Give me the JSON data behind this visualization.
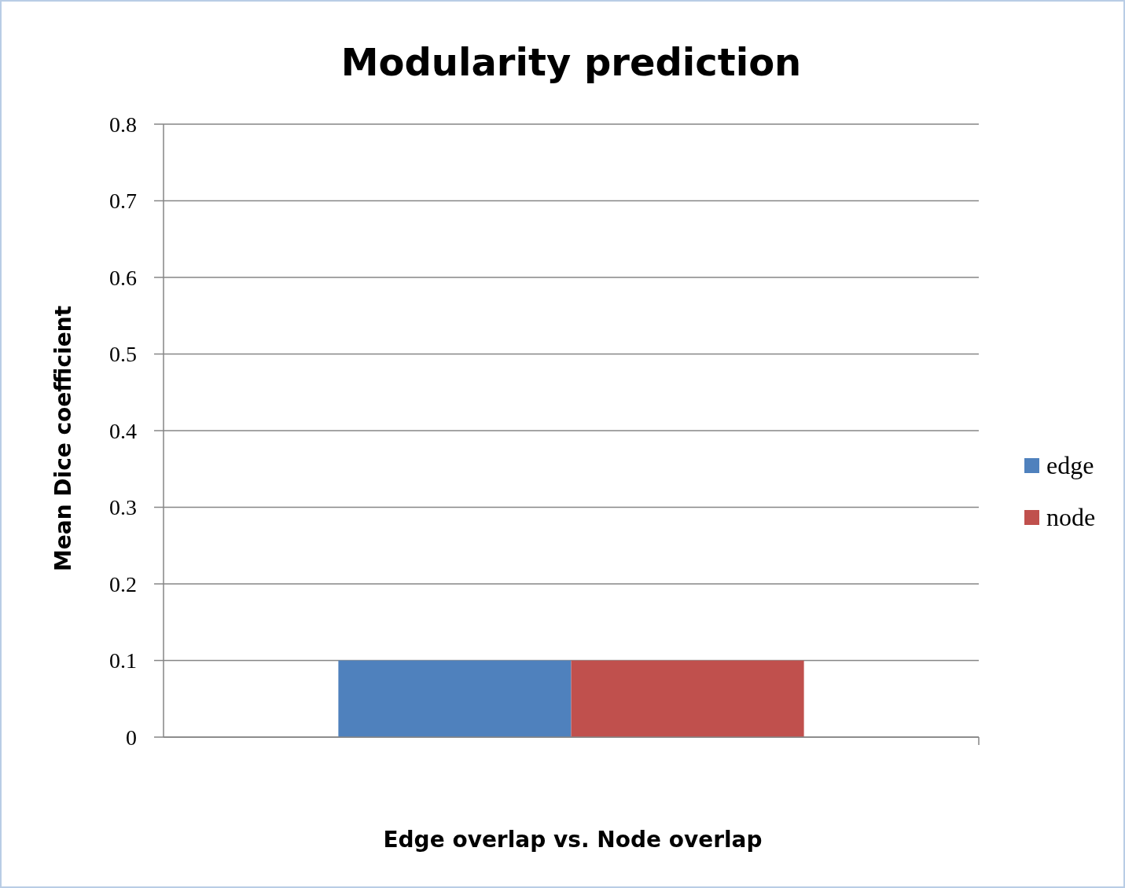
{
  "chart_data": {
    "type": "bar",
    "title": "Modularity prediction",
    "xlabel": "Edge overlap vs. Node overlap",
    "ylabel": "Mean Dice coefficient",
    "categories": [
      null
    ],
    "series": [
      {
        "name": "edge",
        "color": "#4f81bd",
        "values": [
          0.1
        ]
      },
      {
        "name": "node",
        "color": "#c0504d",
        "values": [
          0.1
        ]
      }
    ],
    "ylim": [
      0,
      0.8
    ],
    "yticks": [
      0,
      0.1,
      0.2,
      0.3,
      0.4,
      0.5,
      0.6,
      0.7,
      0.8
    ],
    "grid": "y",
    "legend": "right"
  }
}
